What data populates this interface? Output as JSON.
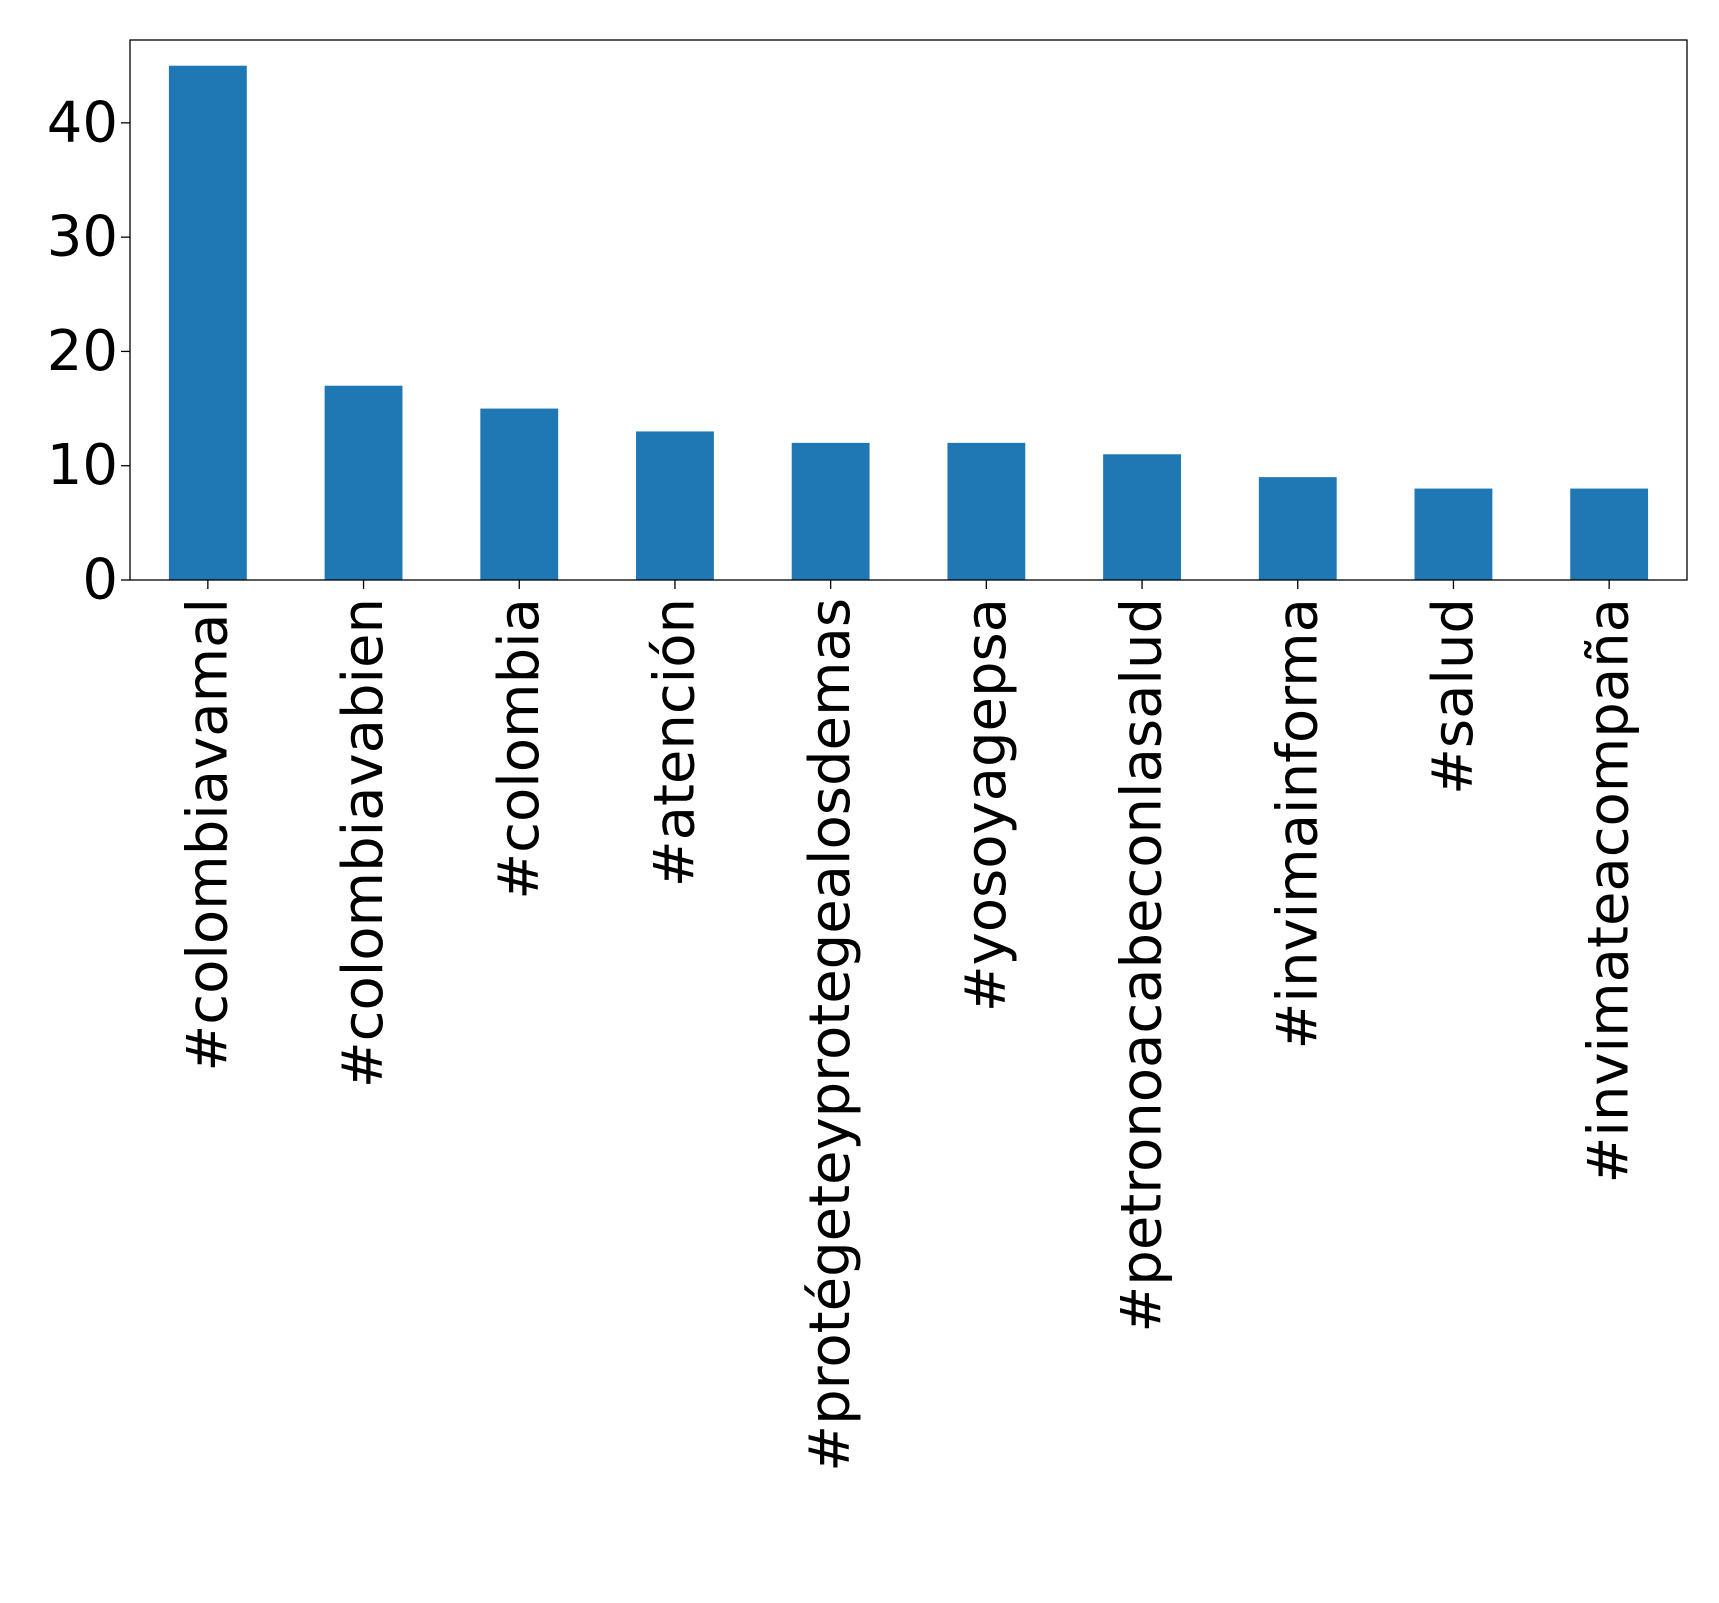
{
  "chart_data": {
    "type": "bar",
    "categories": [
      "#colombiavamal",
      "#colombiavabien",
      "#colombia",
      "#atención",
      "#protégeteyprotegealosdemas",
      "#yosoyagepsa",
      "#petronoacabeconlasalud",
      "#invimainforma",
      "#salud",
      "#invimateacompaña"
    ],
    "values": [
      45,
      17,
      15,
      13,
      12,
      12,
      11,
      9,
      8,
      8
    ],
    "yticks": [
      0,
      10,
      20,
      30,
      40
    ],
    "ylim": [
      0,
      47.25
    ],
    "title": "",
    "xlabel": "",
    "ylabel": "",
    "grid": false,
    "legend": "none",
    "bar_color": "#1f77b4"
  }
}
